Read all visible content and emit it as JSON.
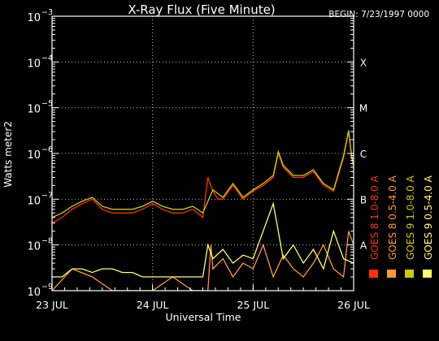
{
  "chart_data": {
    "type": "line",
    "title": "X-Ray Flux (Five Minute)",
    "begin_label": "BEGIN: 7/23/1997 0000",
    "ylabel": "Watts meter2",
    "xlabel": "Universal Time",
    "yscale": "log",
    "ylim": [
      1e-09,
      0.001
    ],
    "xlim_days": [
      0,
      3
    ],
    "y_ticks": [
      {
        "base": "10",
        "exp": "−3",
        "value": 0.001
      },
      {
        "base": "10",
        "exp": "−4",
        "value": 0.0001
      },
      {
        "base": "10",
        "exp": "−5",
        "value": 1e-05
      },
      {
        "base": "10",
        "exp": "−6",
        "value": 1e-06
      },
      {
        "base": "10",
        "exp": "−7",
        "value": 1e-07
      },
      {
        "base": "10",
        "exp": "−8",
        "value": 1e-08
      },
      {
        "base": "10",
        "exp": "−9",
        "value": 1e-09
      }
    ],
    "x_ticks": [
      {
        "label": "23 JUL",
        "day": 0
      },
      {
        "label": "24 JUL",
        "day": 1
      },
      {
        "label": "25 JUL",
        "day": 2
      },
      {
        "label": "26 JUL",
        "day": 3
      }
    ],
    "flare_classes": [
      {
        "label": "X",
        "value": 0.0001
      },
      {
        "label": "M",
        "value": 1e-05
      },
      {
        "label": "C",
        "value": 1e-06
      },
      {
        "label": "B",
        "value": 1e-07
      },
      {
        "label": "A",
        "value": 1e-08
      }
    ],
    "legend_placement": "right, vertical",
    "series": [
      {
        "name": "GOES 8 1.0-8.0 A",
        "color": "#ff3300",
        "x_days": [
          0,
          0.1,
          0.2,
          0.3,
          0.4,
          0.5,
          0.6,
          0.7,
          0.8,
          0.9,
          1.0,
          1.1,
          1.2,
          1.3,
          1.4,
          1.5,
          1.55,
          1.6,
          1.65,
          1.7,
          1.8,
          1.9,
          2.0,
          2.1,
          2.2,
          2.25,
          2.3,
          2.4,
          2.5,
          2.6,
          2.7,
          2.8,
          2.9,
          2.95,
          2.98,
          3.0
        ],
        "values": [
          3e-08,
          4e-08,
          6e-08,
          8e-08,
          1e-07,
          6e-08,
          5e-08,
          5e-08,
          5e-08,
          6e-08,
          8e-08,
          6e-08,
          5e-08,
          5e-08,
          6e-08,
          4e-08,
          3e-07,
          1.5e-07,
          1e-07,
          1e-07,
          2e-07,
          1e-07,
          1.5e-07,
          2e-07,
          3e-07,
          1e-06,
          5e-07,
          3e-07,
          3e-07,
          4e-07,
          2e-07,
          1.5e-07,
          8e-07,
          3e-06,
          8e-07,
          5e-07
        ]
      },
      {
        "name": "GOES 8 0.5-4.0 A",
        "color": "#ff9933",
        "x_days": [
          0,
          0.2,
          0.4,
          0.6,
          0.8,
          1.0,
          1.2,
          1.4,
          1.55,
          1.58,
          1.6,
          1.7,
          1.8,
          1.9,
          2.0,
          2.1,
          2.2,
          2.3,
          2.4,
          2.5,
          2.6,
          2.7,
          2.8,
          2.9,
          2.95,
          3.0
        ],
        "values": [
          1e-09,
          3e-09,
          2e-09,
          1e-09,
          1e-09,
          1e-09,
          2e-09,
          1e-09,
          1e-09,
          1e-08,
          3e-09,
          5e-09,
          2e-09,
          4e-09,
          3e-09,
          1e-08,
          2e-09,
          6e-09,
          3e-09,
          2e-09,
          4e-09,
          1e-08,
          3e-09,
          2e-09,
          2e-08,
          1e-08
        ]
      },
      {
        "name": "GOES 9 1.0-8.0 A",
        "color": "#cccc00",
        "x_days": [
          0,
          0.1,
          0.2,
          0.3,
          0.4,
          0.5,
          0.6,
          0.7,
          0.8,
          0.9,
          1.0,
          1.1,
          1.2,
          1.3,
          1.4,
          1.5,
          1.6,
          1.7,
          1.8,
          1.9,
          2.0,
          2.1,
          2.2,
          2.25,
          2.3,
          2.4,
          2.5,
          2.6,
          2.7,
          2.8,
          2.9,
          2.95,
          2.98,
          3.0
        ],
        "values": [
          4e-08,
          5e-08,
          7e-08,
          9e-08,
          1.1e-07,
          7e-08,
          6e-08,
          6e-08,
          6e-08,
          7e-08,
          9e-08,
          7e-08,
          6e-08,
          6e-08,
          7e-08,
          5e-08,
          1.6e-07,
          1.1e-07,
          2.2e-07,
          1.1e-07,
          1.6e-07,
          2.2e-07,
          3.3e-07,
          1.1e-06,
          5.5e-07,
          3.3e-07,
          3.3e-07,
          4.4e-07,
          2.2e-07,
          1.6e-07,
          9e-07,
          3.2e-06,
          9e-07,
          5.5e-07
        ]
      },
      {
        "name": "GOES 9 0.5-4.0 A",
        "color": "#ffff66",
        "x_days": [
          0,
          0.1,
          0.2,
          0.3,
          0.4,
          0.5,
          0.6,
          0.7,
          0.8,
          0.9,
          1.0,
          1.1,
          1.2,
          1.3,
          1.4,
          1.5,
          1.55,
          1.6,
          1.7,
          1.8,
          1.9,
          2.0,
          2.1,
          2.2,
          2.25,
          2.3,
          2.4,
          2.5,
          2.6,
          2.7,
          2.8,
          2.9,
          3.0
        ],
        "values": [
          2e-09,
          2e-09,
          3e-09,
          3e-09,
          2.5e-09,
          3e-09,
          3e-09,
          2.5e-09,
          2.5e-09,
          2e-09,
          2e-09,
          2e-09,
          2e-09,
          2e-09,
          2e-09,
          2e-09,
          1e-08,
          5e-09,
          8e-09,
          4e-09,
          6e-09,
          5e-09,
          2e-08,
          8e-08,
          2e-08,
          5e-09,
          1e-08,
          4e-09,
          8e-09,
          3e-09,
          2e-08,
          5e-09,
          4e-09
        ]
      }
    ]
  }
}
